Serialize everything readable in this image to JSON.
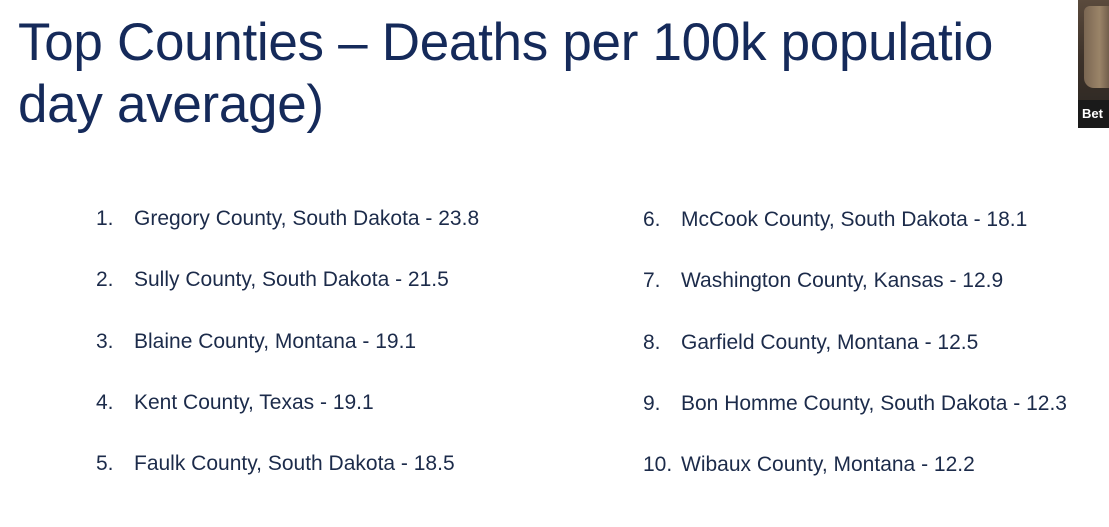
{
  "slide": {
    "title_line1": "Top Counties – Deaths per 100k populatio",
    "title_line2": "day average)"
  },
  "left_list": [
    {
      "num": "1.",
      "text": "Gregory County, South Dakota - 23.8"
    },
    {
      "num": "2.",
      "text": "Sully County, South Dakota - 21.5"
    },
    {
      "num": "3.",
      "text": "Blaine County, Montana - 19.1"
    },
    {
      "num": "4.",
      "text": "Kent County, Texas - 19.1"
    },
    {
      "num": "5.",
      "text": "Faulk County, South Dakota - 18.5"
    }
  ],
  "right_list": [
    {
      "num": "6.",
      "text": "McCook County, South Dakota - 18.1"
    },
    {
      "num": "7.",
      "text": "Washington County, Kansas - 12.9"
    },
    {
      "num": "8.",
      "text": "Garfield County, Montana - 12.5"
    },
    {
      "num": "9.",
      "text": "Bon Homme County, South Dakota - 12.3"
    },
    {
      "num": "10.",
      "text": "Wibaux County, Montana - 12.2"
    }
  ],
  "participant": {
    "name": "Bet"
  },
  "colors": {
    "title": "#152a5a",
    "body_text": "#1c2b4a",
    "background": "#ffffff"
  }
}
